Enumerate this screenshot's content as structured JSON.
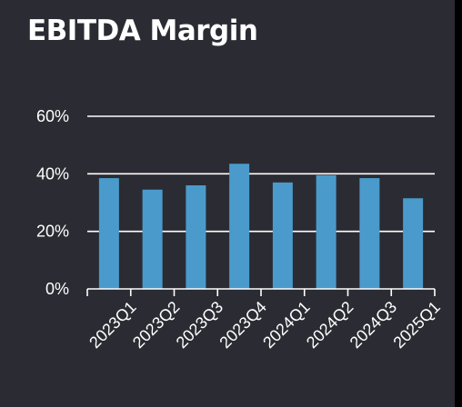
{
  "chart_data": {
    "type": "bar",
    "title": "EBITDA Margin",
    "categories": [
      "2023Q1",
      "2023Q2",
      "2023Q3",
      "2023Q4",
      "2024Q1",
      "2024Q2",
      "2024Q3",
      "2025Q1"
    ],
    "values": [
      38.5,
      34.5,
      36,
      43.5,
      37,
      39.5,
      38.5,
      31.5
    ],
    "ylim": [
      0,
      60
    ],
    "yticks": [
      0,
      20,
      40,
      60
    ],
    "ytick_labels": [
      "0%",
      "20%",
      "40%",
      "60%"
    ],
    "grid": true,
    "legend": "none",
    "colors": {
      "bar": "#4a9bcb",
      "background": "#2b2b33",
      "grid": "#ffffff",
      "text": "#ffffff"
    }
  }
}
